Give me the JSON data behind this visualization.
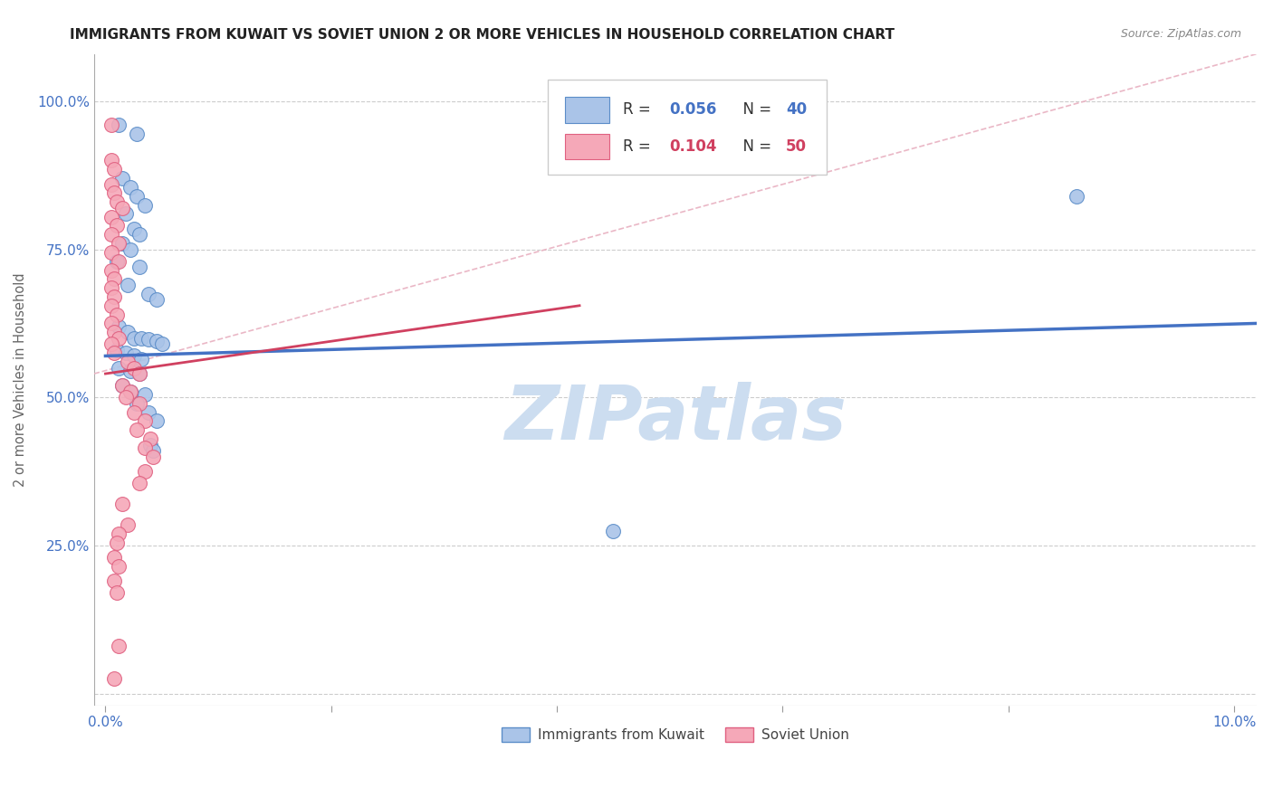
{
  "title": "IMMIGRANTS FROM KUWAIT VS SOVIET UNION 2 OR MORE VEHICLES IN HOUSEHOLD CORRELATION CHART",
  "source": "Source: ZipAtlas.com",
  "ylabel": "2 or more Vehicles in Household",
  "xlim": [
    -0.001,
    0.102
  ],
  "ylim": [
    -0.02,
    1.08
  ],
  "xticks": [
    0.0,
    0.02,
    0.04,
    0.06,
    0.08,
    0.1
  ],
  "xticklabels": [
    "0.0%",
    "",
    "",
    "",
    "",
    "10.0%"
  ],
  "yticks": [
    0.0,
    0.25,
    0.5,
    0.75,
    1.0
  ],
  "yticklabels": [
    "",
    "25.0%",
    "50.0%",
    "75.0%",
    "100.0%"
  ],
  "kuwait_color": "#aac4e8",
  "soviet_color": "#f5a8b8",
  "kuwait_edge_color": "#5b8dc8",
  "soviet_edge_color": "#e06080",
  "kuwait_line_color": "#4472c4",
  "soviet_line_color": "#d04060",
  "diagonal_color": "#e8b0c0",
  "background_color": "#ffffff",
  "grid_color": "#cccccc",
  "title_color": "#222222",
  "tick_label_color": "#4472c4",
  "ylabel_color": "#666666",
  "kuwait_scatter": [
    [
      0.0012,
      0.96
    ],
    [
      0.0028,
      0.945
    ],
    [
      0.0015,
      0.87
    ],
    [
      0.0022,
      0.855
    ],
    [
      0.0028,
      0.84
    ],
    [
      0.0035,
      0.825
    ],
    [
      0.0018,
      0.81
    ],
    [
      0.0025,
      0.785
    ],
    [
      0.003,
      0.775
    ],
    [
      0.0015,
      0.76
    ],
    [
      0.0022,
      0.75
    ],
    [
      0.001,
      0.73
    ],
    [
      0.003,
      0.72
    ],
    [
      0.002,
      0.69
    ],
    [
      0.0038,
      0.675
    ],
    [
      0.0045,
      0.665
    ],
    [
      0.0012,
      0.62
    ],
    [
      0.002,
      0.61
    ],
    [
      0.0025,
      0.6
    ],
    [
      0.0032,
      0.6
    ],
    [
      0.0038,
      0.598
    ],
    [
      0.0045,
      0.595
    ],
    [
      0.005,
      0.59
    ],
    [
      0.001,
      0.58
    ],
    [
      0.0018,
      0.575
    ],
    [
      0.0025,
      0.57
    ],
    [
      0.0032,
      0.565
    ],
    [
      0.0012,
      0.55
    ],
    [
      0.0022,
      0.545
    ],
    [
      0.003,
      0.54
    ],
    [
      0.0015,
      0.52
    ],
    [
      0.0022,
      0.51
    ],
    [
      0.0035,
      0.505
    ],
    [
      0.0028,
      0.49
    ],
    [
      0.0038,
      0.475
    ],
    [
      0.0045,
      0.46
    ],
    [
      0.004,
      0.42
    ],
    [
      0.0042,
      0.41
    ],
    [
      0.045,
      0.275
    ],
    [
      0.086,
      0.84
    ]
  ],
  "soviet_scatter": [
    [
      0.0005,
      0.96
    ],
    [
      0.0005,
      0.9
    ],
    [
      0.0008,
      0.885
    ],
    [
      0.0005,
      0.86
    ],
    [
      0.0008,
      0.845
    ],
    [
      0.001,
      0.83
    ],
    [
      0.0015,
      0.82
    ],
    [
      0.0005,
      0.805
    ],
    [
      0.001,
      0.79
    ],
    [
      0.0005,
      0.775
    ],
    [
      0.0012,
      0.76
    ],
    [
      0.0005,
      0.745
    ],
    [
      0.0012,
      0.73
    ],
    [
      0.0005,
      0.715
    ],
    [
      0.0008,
      0.7
    ],
    [
      0.0005,
      0.685
    ],
    [
      0.0008,
      0.67
    ],
    [
      0.0005,
      0.655
    ],
    [
      0.001,
      0.64
    ],
    [
      0.0005,
      0.625
    ],
    [
      0.0008,
      0.61
    ],
    [
      0.0012,
      0.6
    ],
    [
      0.0005,
      0.59
    ],
    [
      0.0008,
      0.575
    ],
    [
      0.002,
      0.56
    ],
    [
      0.0025,
      0.55
    ],
    [
      0.003,
      0.54
    ],
    [
      0.0015,
      0.52
    ],
    [
      0.0022,
      0.51
    ],
    [
      0.0018,
      0.5
    ],
    [
      0.003,
      0.49
    ],
    [
      0.0025,
      0.475
    ],
    [
      0.0035,
      0.46
    ],
    [
      0.0028,
      0.445
    ],
    [
      0.004,
      0.43
    ],
    [
      0.0035,
      0.415
    ],
    [
      0.0042,
      0.4
    ],
    [
      0.0035,
      0.375
    ],
    [
      0.003,
      0.355
    ],
    [
      0.0015,
      0.32
    ],
    [
      0.002,
      0.285
    ],
    [
      0.0012,
      0.27
    ],
    [
      0.001,
      0.255
    ],
    [
      0.0008,
      0.23
    ],
    [
      0.0012,
      0.215
    ],
    [
      0.0008,
      0.19
    ],
    [
      0.001,
      0.17
    ],
    [
      0.0012,
      0.08
    ],
    [
      0.0008,
      0.025
    ]
  ],
  "kuwait_line": [
    [
      0.0,
      0.57
    ],
    [
      0.102,
      0.625
    ]
  ],
  "soviet_line": [
    [
      0.0,
      0.54
    ],
    [
      0.042,
      0.655
    ]
  ],
  "diagonal_line": [
    [
      -0.001,
      0.54
    ],
    [
      0.102,
      1.08
    ]
  ],
  "watermark_text": "ZIPatlas",
  "watermark_color": "#ccddf0",
  "legend_kuwait_label": "Immigrants from Kuwait",
  "legend_soviet_label": "Soviet Union"
}
